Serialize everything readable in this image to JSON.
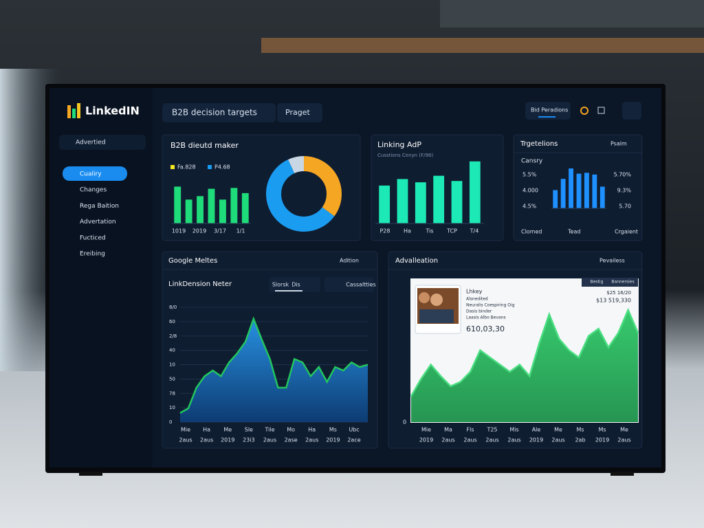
{
  "sidebar": {
    "logo": "LinkedIN",
    "search": "Advertied",
    "nav": [
      "Cualiry",
      "Changes",
      "Rega Baition",
      "Advertation",
      "Fucticed",
      "Ereibing"
    ]
  },
  "topbar": {
    "target": "B2B decision targets",
    "select": "Praget",
    "button": "Bid Peradions"
  },
  "panels": [
    {
      "title": "B2B dieutd maker",
      "legend": [
        "Fa.828",
        "P4.68"
      ],
      "chart": {
        "type": "bar",
        "color": "#1fdc7a",
        "ylim": [
          0,
          100
        ],
        "values": [
          85,
          55,
          63,
          80,
          55,
          82,
          70
        ],
        "xlabels": [
          "1019",
          "2019",
          "3/17",
          "1/1"
        ]
      },
      "donut": {
        "type": "pie",
        "values": [
          35,
          58,
          7
        ],
        "colors": [
          "#f5a623",
          "#1a9cf0",
          "#c9d6e3"
        ]
      }
    },
    {
      "title": "Linking AdP",
      "subtitle": "Cusstions Cenyn (F/98)",
      "chart": {
        "type": "bar",
        "color": "#1de9b6",
        "ylim": [
          0,
          100
        ],
        "values": [
          58,
          68,
          63,
          73,
          65,
          95
        ],
        "xlabels": [
          "P28",
          "Ha",
          "Tis",
          "TCP",
          "T/4"
        ]
      }
    },
    {
      "title": "Trgetelions",
      "menu": "Psalm",
      "label": "Cansry",
      "left_labels": [
        "5.5%",
        "4.000",
        "4.5%"
      ],
      "right_labels": [
        "5.70%",
        "9.3%",
        "5.70"
      ],
      "chart": {
        "type": "bar",
        "color": "#1e90ff",
        "ylim": [
          0,
          100
        ],
        "values": [
          42,
          68,
          92,
          80,
          82,
          78,
          50
        ]
      },
      "footer": [
        "Clomed",
        "Tead",
        "Crgaient"
      ]
    },
    {
      "title": "Google Meltes",
      "menu": "Adition",
      "subtitle": "LinkDension Neter",
      "tabs": [
        "Slorsk",
        "Dis",
        "Cassaltties"
      ],
      "chart": {
        "type": "area",
        "color": "#1e88e5",
        "line_color": "#22c55e",
        "ylim": [
          0,
          100
        ],
        "values": [
          8,
          12,
          30,
          40,
          45,
          40,
          52,
          60,
          70,
          90,
          72,
          55,
          30,
          30,
          55,
          52,
          40,
          48,
          35,
          48,
          45,
          52,
          48,
          50
        ],
        "ytick_labels": [
          "8/0",
          "60",
          "2/8",
          "40",
          "10",
          "50",
          "78",
          "10",
          "0"
        ],
        "xlabels": [
          "Mie",
          "Ha",
          "Me",
          "Sle",
          "Tile",
          "Mo",
          "Ha",
          "Ms",
          "Ubc"
        ],
        "xsublabels": [
          "2aus",
          "2aus",
          "2019",
          "23i3",
          "2aus",
          "2ase",
          "2aus",
          "2019",
          "2ace"
        ]
      }
    },
    {
      "title": "Advalleation",
      "menu": "Pevailess",
      "card": {
        "name": "Lhkey",
        "lines": [
          "Alsnedited",
          "Neuralis Coespiring Oig",
          "Dasis binder",
          "Laasis Albo Bevans"
        ],
        "amount": "610,03,30",
        "badges": [
          "Bestig",
          "Bannersies"
        ],
        "stat1": "$25 16/20",
        "stat2": "$13 519,330"
      },
      "chart": {
        "type": "area",
        "color": "#16a34a",
        "line_color": "#4ade80",
        "ylim": [
          0,
          100
        ],
        "values": [
          18,
          30,
          40,
          32,
          25,
          28,
          35,
          50,
          45,
          40,
          35,
          40,
          32,
          55,
          75,
          58,
          50,
          45,
          60,
          65,
          52,
          62,
          78,
          62
        ],
        "ytick_labels": [
          "0"
        ],
        "xlabels": [
          "Mie",
          "Ma",
          "Fls",
          "T25",
          "Mis",
          "Ale",
          "Me",
          "Ms",
          "Ms",
          "Me"
        ],
        "xsublabels": [
          "2019",
          "2aus",
          "2aus",
          "2aus",
          "2aus",
          "2019",
          "2aus",
          "2ab",
          "2019",
          "2aus"
        ]
      }
    }
  ]
}
